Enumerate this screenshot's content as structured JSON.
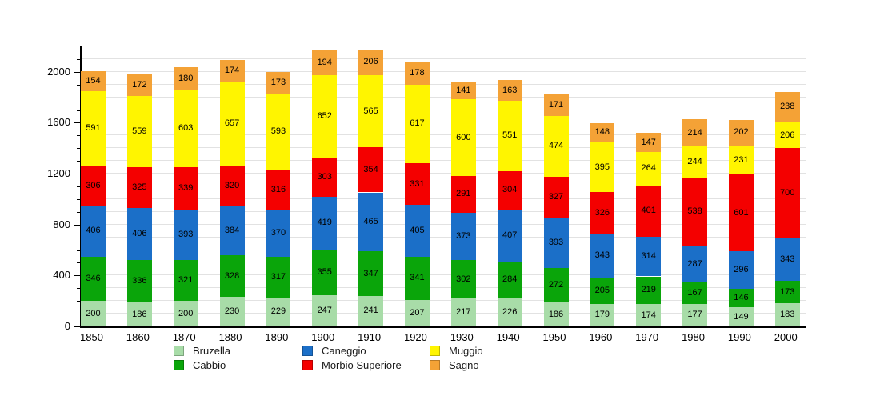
{
  "chart_data": {
    "type": "bar",
    "stacked": true,
    "title": "",
    "xlabel": "",
    "ylabel": "",
    "ylim": [
      0,
      2200
    ],
    "yticks": [
      0,
      400,
      800,
      1200,
      1600,
      2000
    ],
    "minor_grid_step": 100,
    "grid": true,
    "legend_position": "bottom",
    "categories": [
      "1850",
      "1860",
      "1870",
      "1880",
      "1890",
      "1900",
      "1910",
      "1920",
      "1930",
      "1940",
      "1950",
      "1960",
      "1970",
      "1980",
      "1990",
      "2000"
    ],
    "series": [
      {
        "name": "Bruzella",
        "color": "#A8DCA8",
        "values": [
          200,
          186,
          200,
          230,
          229,
          247,
          241,
          207,
          217,
          226,
          186,
          179,
          174,
          177,
          149,
          183
        ]
      },
      {
        "name": "Cabbio",
        "color": "#0AA50A",
        "values": [
          346,
          336,
          321,
          328,
          317,
          355,
          347,
          341,
          302,
          284,
          272,
          205,
          219,
          167,
          146,
          173
        ]
      },
      {
        "name": "Caneggio",
        "color": "#1B6FC8",
        "values": [
          406,
          406,
          393,
          384,
          370,
          419,
          465,
          405,
          373,
          407,
          393,
          343,
          314,
          287,
          296,
          343
        ]
      },
      {
        "name": "Morbio Superiore",
        "color": "#F40000",
        "values": [
          306,
          325,
          339,
          320,
          316,
          303,
          354,
          331,
          291,
          304,
          327,
          326,
          401,
          538,
          601,
          700
        ]
      },
      {
        "name": "Muggio",
        "color": "#FFF500",
        "values": [
          591,
          559,
          603,
          657,
          593,
          652,
          565,
          617,
          600,
          551,
          474,
          395,
          264,
          244,
          231,
          206
        ]
      },
      {
        "name": "Sagno",
        "color": "#F4A236",
        "values": [
          154,
          172,
          180,
          174,
          173,
          194,
          206,
          178,
          141,
          163,
          171,
          148,
          147,
          214,
          202,
          238
        ]
      }
    ],
    "colors": {
      "axis": "#000000",
      "grid": "#e2e2e2",
      "background": "#ffffff",
      "label_text": "#000000"
    }
  }
}
